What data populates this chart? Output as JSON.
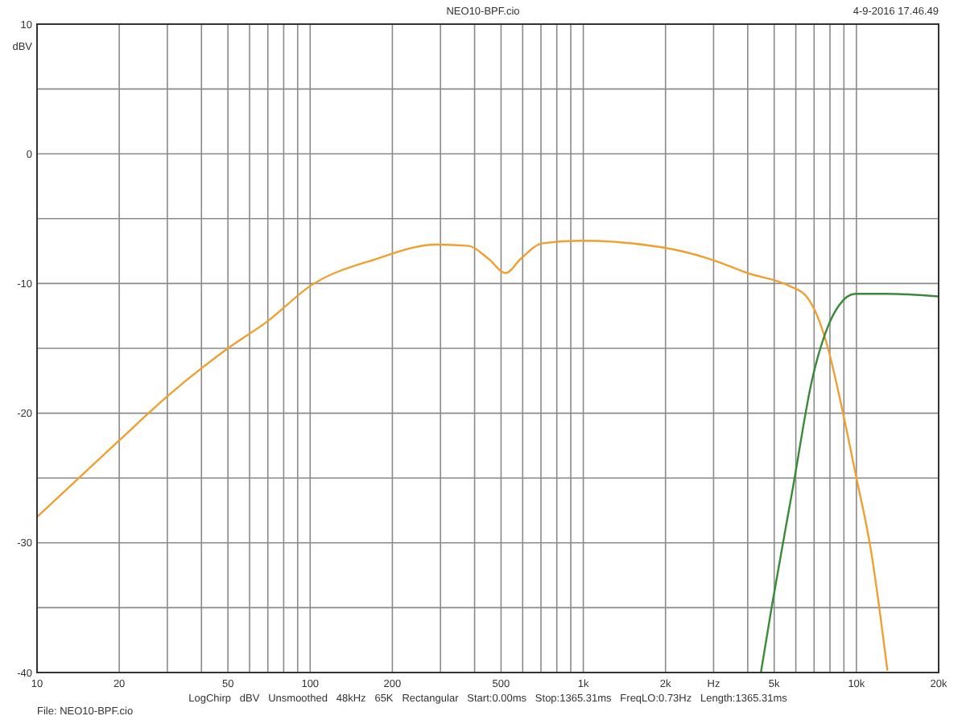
{
  "chart_data": {
    "type": "line",
    "title": "NEO10-BPF.cio",
    "xlabel": "Hz",
    "ylabel": "dBV",
    "log": "x",
    "grid": true,
    "annotations": [
      "4-9-2016 17.46.49",
      "LogChirp   dBV   Unsmoothed   48kHz   65K   Rectangular   Start:0.00ms   Stop:1365.31ms   FreqLO:0.73Hz   Length:1365.31ms",
      "File: NEO10-BPF.cio"
    ],
    "xlim": [
      10,
      20000
    ],
    "ylim": [
      -40,
      10
    ],
    "xticks": [
      10,
      20,
      {
        "value": 30,
        "label": null
      },
      {
        "value": 40,
        "label": null
      },
      50,
      {
        "value": 60,
        "label": null
      },
      {
        "value": 70,
        "label": null
      },
      {
        "value": 80,
        "label": null
      },
      {
        "value": 90,
        "label": null
      },
      100,
      200,
      {
        "value": 300,
        "label": null
      },
      {
        "value": 400,
        "label": null
      },
      500,
      {
        "value": 600,
        "label": null
      },
      {
        "value": 700,
        "label": null
      },
      {
        "value": 800,
        "label": null
      },
      {
        "value": 900,
        "label": null
      },
      {
        "value": 1000,
        "label": "1k"
      },
      {
        "value": 2000,
        "label": "2k"
      },
      {
        "value": 3000,
        "label": null
      },
      {
        "value": 4000,
        "label": null
      },
      {
        "value": 5000,
        "label": "5k"
      },
      {
        "value": 6000,
        "label": null
      },
      {
        "value": 7000,
        "label": null
      },
      {
        "value": 8000,
        "label": null
      },
      {
        "value": 9000,
        "label": null
      },
      {
        "value": 10000,
        "label": "10k"
      },
      {
        "value": 20000,
        "label": "20k"
      }
    ],
    "yticks": [
      10,
      {
        "value": 5,
        "label": null
      },
      0,
      {
        "value": -5,
        "label": null
      },
      -10,
      {
        "value": -15,
        "label": null
      },
      -20,
      {
        "value": -25,
        "label": null
      },
      -30,
      {
        "value": -35,
        "label": null
      },
      -40
    ],
    "series": [
      {
        "color": "#f0a030",
        "x": [
          10,
          20,
          30,
          50,
          70,
          100,
          175,
          290,
          380,
          450,
          520,
          590,
          710,
          980,
          1930,
          2900,
          4000,
          5700,
          6560,
          7190,
          7870,
          8830,
          9890,
          11330,
          12980
        ],
        "values": [
          -28,
          -22.1,
          -18.7,
          -15,
          -12.9,
          -10.2,
          -8.1,
          -7,
          -7.1,
          -8.1,
          -9.2,
          -8.1,
          -6.9,
          -6.7,
          -7.2,
          -8.1,
          -9.2,
          -10.2,
          -11,
          -12.5,
          -15,
          -19.5,
          -24.5,
          -30.7,
          -39.8
        ]
      },
      {
        "color": "#3a8a3a",
        "x": [
          4470,
          4900,
          5860,
          6870,
          7870,
          8630,
          9890,
          12980,
          20000
        ],
        "values": [
          -40,
          -34.9,
          -25.7,
          -17.5,
          -13.3,
          -11.7,
          -10.8,
          -10.8,
          -11
        ]
      }
    ]
  }
}
